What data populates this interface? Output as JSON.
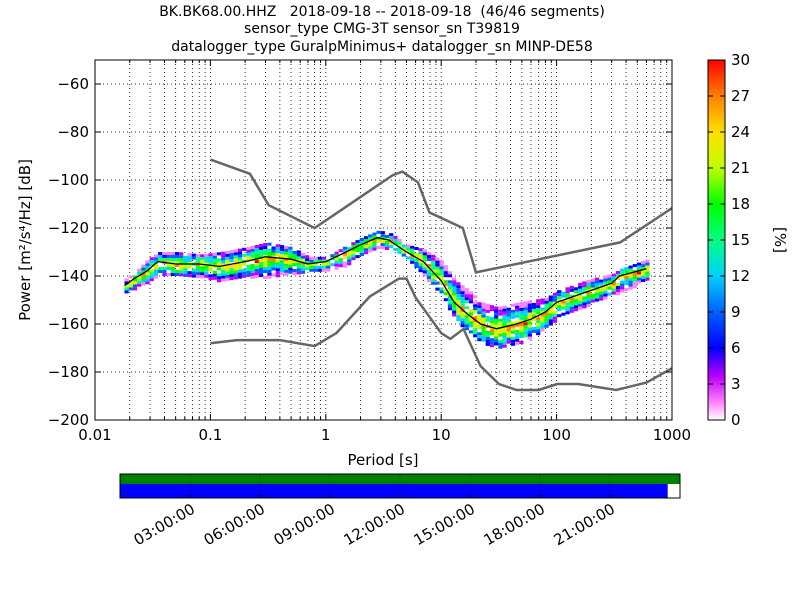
{
  "chart_data": {
    "type": "heatmap",
    "title_lines": [
      "BK.BK68.00.HHZ   2018-09-18 -- 2018-09-18  (46/46 segments)",
      "sensor_type CMG-3T sensor_sn T39819",
      "datalogger_type GuralpMinimus+ datalogger_sn MINP-DE58"
    ],
    "xlabel": "Period [s]",
    "ylabel": "Power [m²/s⁴/Hz] [dB]",
    "xscale": "log",
    "xlim": [
      0.01,
      1000
    ],
    "ylim": [
      -200,
      -50
    ],
    "xticks": [
      {
        "value": 0.01,
        "label": "0.01"
      },
      {
        "value": 0.1,
        "label": "0.1"
      },
      {
        "value": 1,
        "label": "1"
      },
      {
        "value": 10,
        "label": "10"
      },
      {
        "value": 100,
        "label": "100"
      },
      {
        "value": 1000,
        "label": "1000"
      }
    ],
    "yticks": [
      {
        "value": -60,
        "label": "−60"
      },
      {
        "value": -80,
        "label": "−80"
      },
      {
        "value": -100,
        "label": "−100"
      },
      {
        "value": -120,
        "label": "−120"
      },
      {
        "value": -140,
        "label": "−140"
      },
      {
        "value": -160,
        "label": "−160"
      },
      {
        "value": -180,
        "label": "−180"
      },
      {
        "value": -200,
        "label": "−200"
      }
    ],
    "grid": true,
    "colorbar": {
      "label": "[%]",
      "range": [
        0,
        30
      ],
      "ticks": [
        "0",
        "3",
        "6",
        "9",
        "12",
        "15",
        "18",
        "21",
        "24",
        "27",
        "30"
      ]
    },
    "new_high_noise_model": {
      "x": [
        0.1,
        0.22,
        0.32,
        0.8,
        3.8,
        4.6,
        6.3,
        7.9,
        15.4,
        20,
        354.8,
        10000
      ],
      "y": [
        -91.5,
        -97.4,
        -110.5,
        -120,
        -98,
        -96.5,
        -101,
        -113.5,
        -120,
        -138.5,
        -126,
        -80
      ]
    },
    "new_low_noise_model": {
      "x": [
        0.1,
        0.17,
        0.4,
        0.8,
        1.24,
        2.4,
        4.3,
        5,
        6,
        10,
        12,
        15.6,
        21.9,
        31.6,
        45,
        70,
        101,
        154,
        328,
        600,
        10000
      ],
      "y": [
        -168,
        -166.7,
        -166.7,
        -169.2,
        -163.7,
        -148.6,
        -141.1,
        -141.1,
        -149,
        -163.8,
        -166.2,
        -162.1,
        -177.5,
        -185,
        -187.5,
        -187.5,
        -185,
        -185,
        -187.5,
        -184.4,
        -151.5
      ]
    },
    "mode_curve": {
      "x": [
        0.018,
        0.022,
        0.028,
        0.035,
        0.05,
        0.08,
        0.12,
        0.2,
        0.3,
        0.5,
        0.7,
        1,
        1.5,
        2,
        2.8,
        3.5,
        5,
        7,
        10,
        13,
        17,
        22,
        30,
        45,
        60,
        80,
        100,
        150,
        200,
        300,
        350,
        600
      ],
      "y": [
        -144,
        -141,
        -138,
        -134,
        -135,
        -135,
        -136,
        -134,
        -132,
        -133,
        -135,
        -134,
        -130,
        -127,
        -124,
        -125,
        -130,
        -134,
        -142,
        -151,
        -156,
        -160,
        -162,
        -160,
        -158,
        -155,
        -151,
        -148,
        -146,
        -143,
        -140,
        -137
      ]
    },
    "density_band": [
      [
        0.018,
        -146,
        -141,
        3
      ],
      [
        0.022,
        -145,
        -138,
        4
      ],
      [
        0.028,
        -142,
        -133,
        4
      ],
      [
        0.035,
        -139,
        -130,
        5
      ],
      [
        0.05,
        -140,
        -130,
        5
      ],
      [
        0.08,
        -140,
        -131,
        5
      ],
      [
        0.12,
        -142,
        -130,
        6
      ],
      [
        0.2,
        -140,
        -128,
        6
      ],
      [
        0.3,
        -140,
        -126,
        6
      ],
      [
        0.5,
        -139,
        -128,
        5
      ],
      [
        0.7,
        -138,
        -132,
        5
      ],
      [
        1,
        -137,
        -132,
        4
      ],
      [
        1.5,
        -135,
        -127,
        4
      ],
      [
        2,
        -131,
        -124,
        4
      ],
      [
        2.8,
        -128,
        -121,
        4
      ],
      [
        3.5,
        -128,
        -122,
        4
      ],
      [
        5,
        -133,
        -127,
        4
      ],
      [
        7,
        -140,
        -129,
        5
      ],
      [
        10,
        -148,
        -134,
        6
      ],
      [
        13,
        -158,
        -142,
        7
      ],
      [
        17,
        -163,
        -146,
        7
      ],
      [
        22,
        -167,
        -151,
        8
      ],
      [
        30,
        -170,
        -153,
        8
      ],
      [
        45,
        -168,
        -151,
        8
      ],
      [
        60,
        -165,
        -150,
        7
      ],
      [
        80,
        -161,
        -149,
        6
      ],
      [
        100,
        -157,
        -146,
        5
      ],
      [
        150,
        -153,
        -143,
        4
      ],
      [
        200,
        -151,
        -141,
        4
      ],
      [
        300,
        -147,
        -139,
        3
      ],
      [
        350,
        -147,
        -137,
        3
      ],
      [
        600,
        -141,
        -133,
        3
      ]
    ],
    "timeline": {
      "ticks": [
        "03:00:00",
        "06:00:00",
        "09:00:00",
        "12:00:00",
        "15:00:00",
        "18:00:00",
        "21:00:00"
      ],
      "data_coverage_fraction": 1.0,
      "psd_coverage_fraction": 0.978
    }
  },
  "colors": {
    "noise_model": "#666666",
    "mode_curve": "#000000",
    "timeline_data": "#008000",
    "timeline_psd": "#0000ff"
  }
}
